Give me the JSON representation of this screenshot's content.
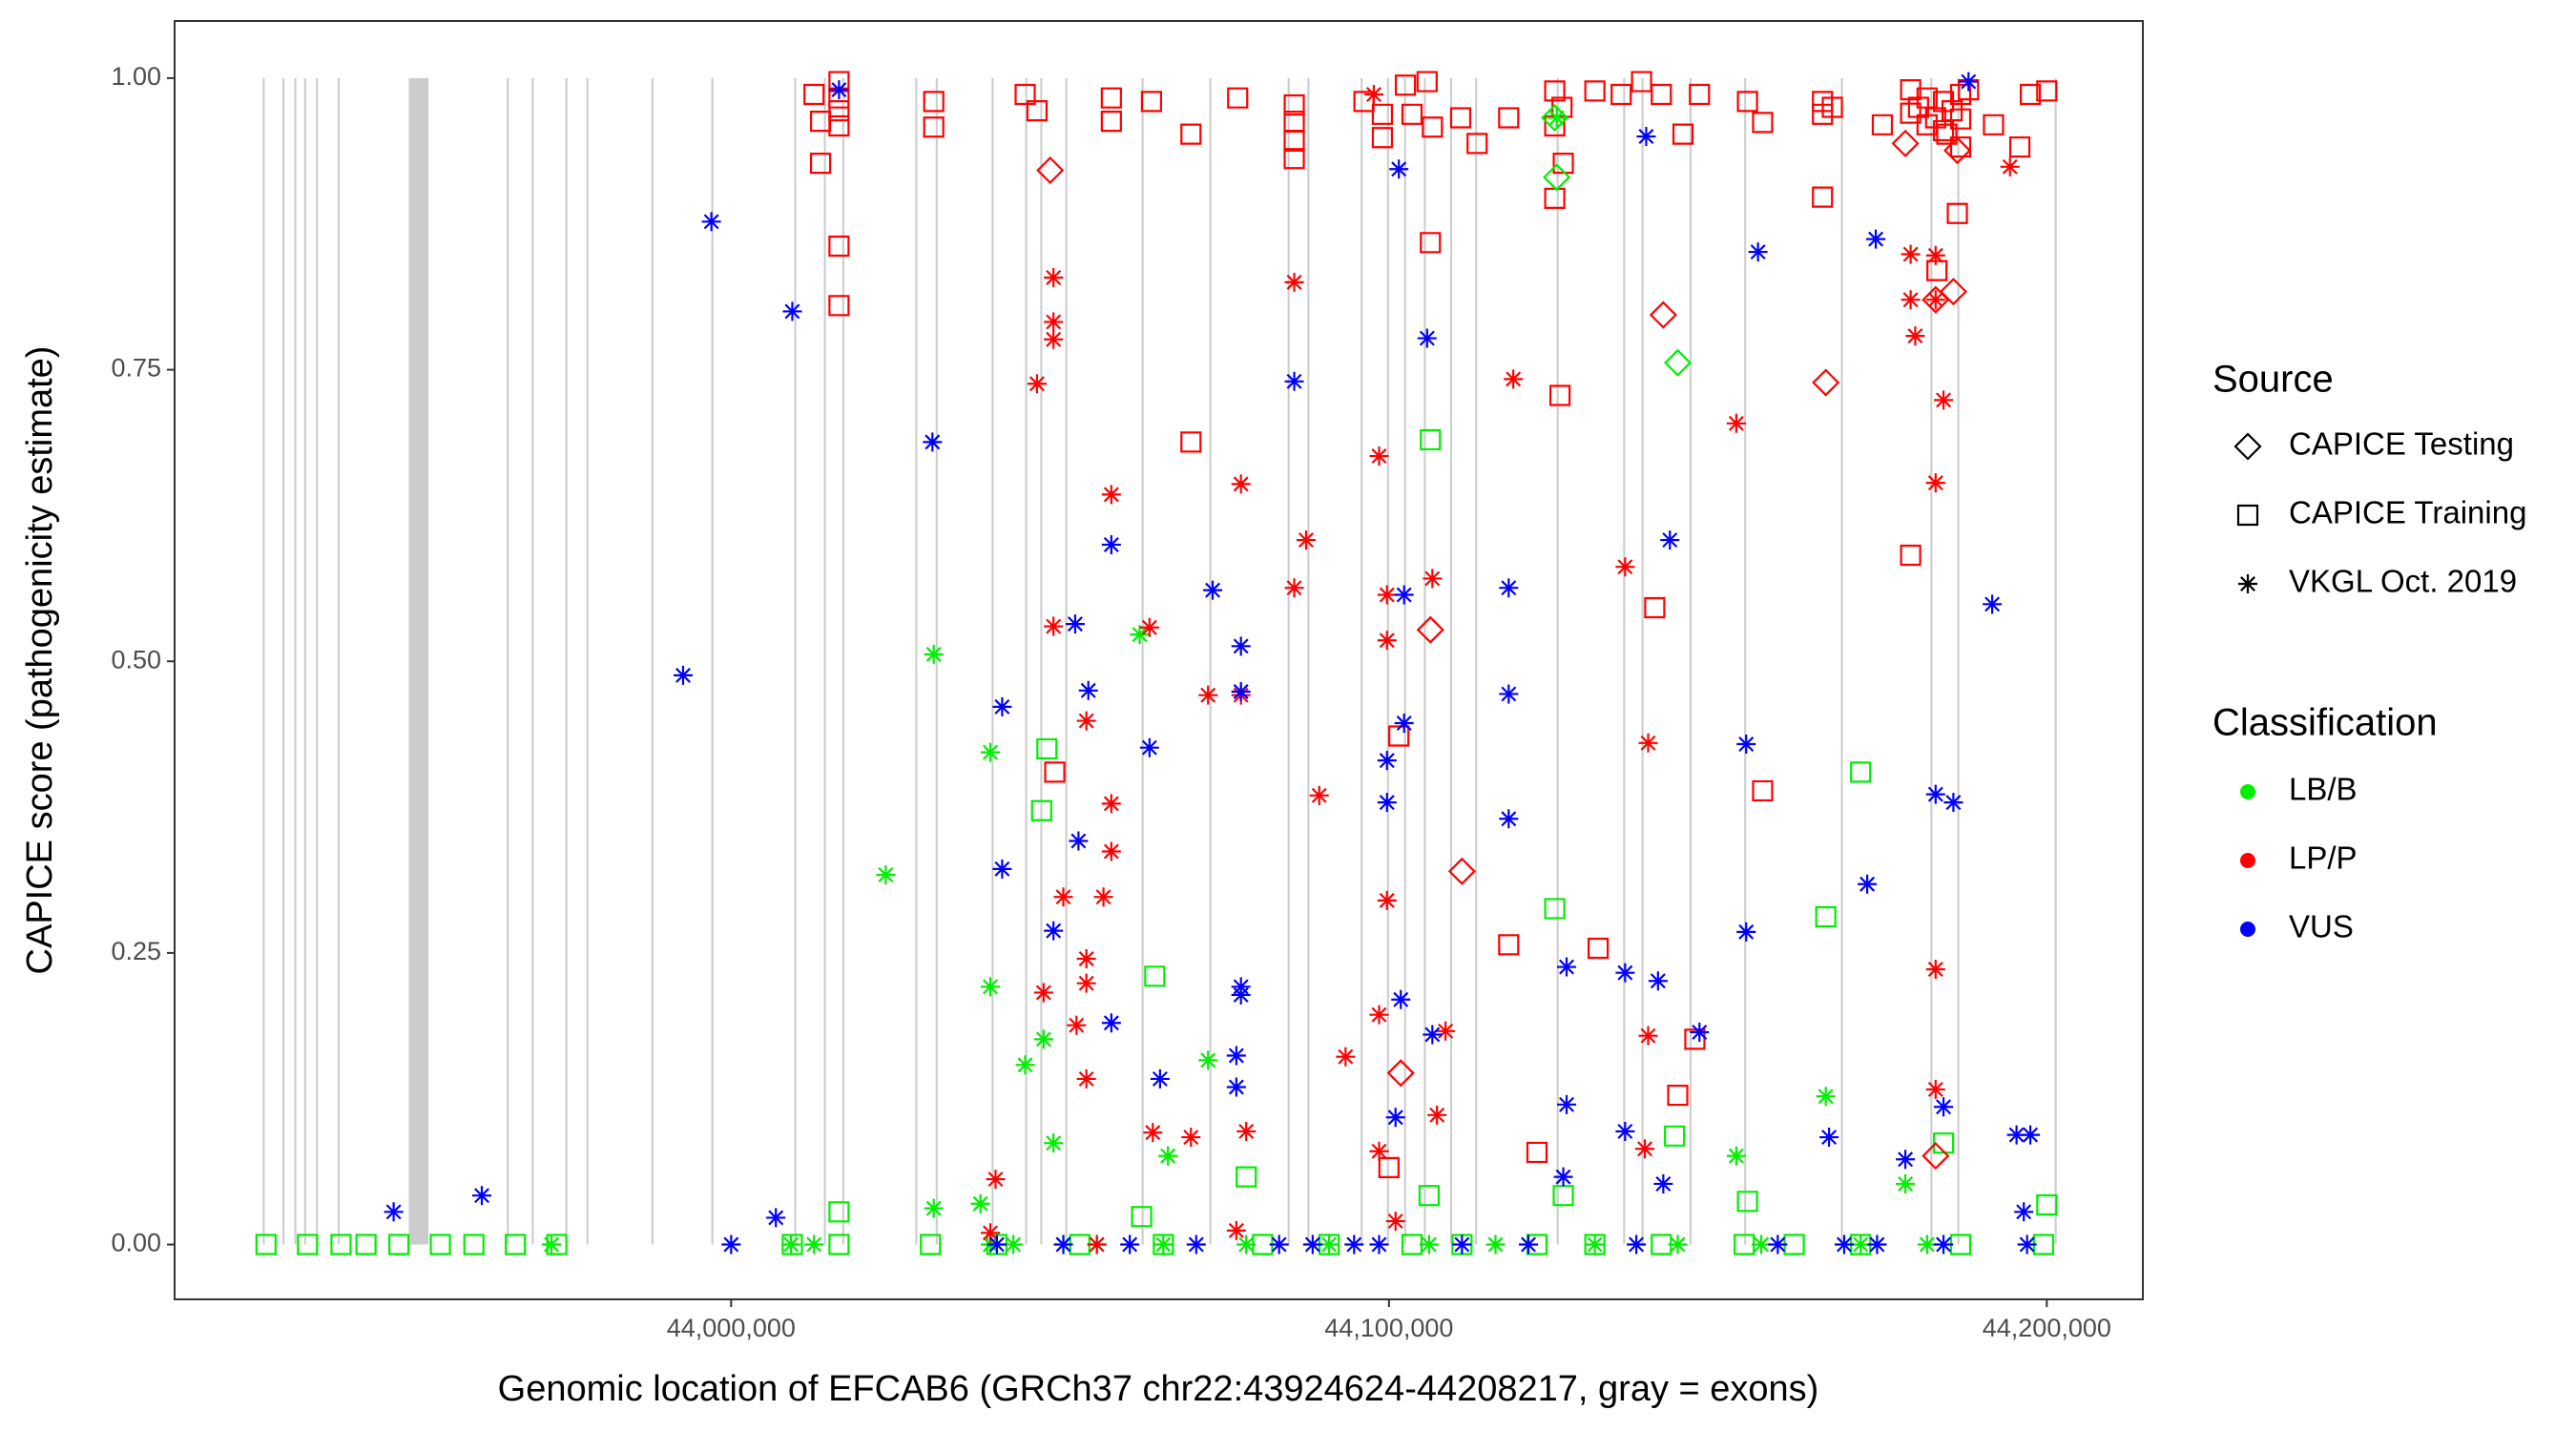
{
  "chart_data": {
    "type": "scatter",
    "x_label": "Genomic location of EFCAB6 (GRCh37 chr22:43924624-44208217, gray = exons)",
    "y_label": "CAPICE score (pathogenicity estimate)",
    "xlim": [
      43915400,
      44214600
    ],
    "ylim": [
      -0.047,
      1.049
    ],
    "xticks": [
      {
        "value": 44000000,
        "label": "44,000,000"
      },
      {
        "value": 44100000,
        "label": "44,100,000"
      },
      {
        "value": 44200000,
        "label": "44,200,000"
      }
    ],
    "yticks": [
      {
        "value": 0,
        "label": "0.00"
      },
      {
        "value": 0.25,
        "label": "0.25"
      },
      {
        "value": 0.5,
        "label": "0.50"
      },
      {
        "value": 0.75,
        "label": "0.75"
      },
      {
        "value": 1,
        "label": "1.00"
      }
    ],
    "grid": false,
    "exon_color": "#cccccc",
    "exons": [
      [
        43928800,
        43929100
      ],
      [
        43931800,
        43932100
      ],
      [
        43933600,
        43933900
      ],
      [
        43935100,
        43935400
      ],
      [
        43936900,
        43937200
      ],
      [
        43940200,
        43940500
      ],
      [
        43951000,
        43954000
      ],
      [
        43965900,
        43966200
      ],
      [
        43969700,
        43970000
      ],
      [
        43974800,
        43975100
      ],
      [
        43978000,
        43978300
      ],
      [
        43987900,
        43988200
      ],
      [
        43997000,
        43997300
      ],
      [
        44009600,
        44009900
      ],
      [
        44014100,
        44014400
      ],
      [
        44016900,
        44017200
      ],
      [
        44028000,
        44028300
      ],
      [
        44031100,
        44031400
      ],
      [
        44039600,
        44039900
      ],
      [
        44044700,
        44045000
      ],
      [
        44047000,
        44047300
      ],
      [
        44050800,
        44051100
      ],
      [
        44062400,
        44062700
      ],
      [
        44072700,
        44073000
      ],
      [
        44084600,
        44084900
      ],
      [
        44087600,
        44087900
      ],
      [
        44095700,
        44096000
      ],
      [
        44099700,
        44100000
      ],
      [
        44102300,
        44102600
      ],
      [
        44105300,
        44105600
      ],
      [
        44109300,
        44109600
      ],
      [
        44113100,
        44113400
      ],
      [
        44125500,
        44125800
      ],
      [
        44135600,
        44135900
      ],
      [
        44138400,
        44138700
      ],
      [
        44145700,
        44146000
      ],
      [
        44154000,
        44154300
      ],
      [
        44168700,
        44169000
      ],
      [
        44182300,
        44182600
      ],
      [
        44186400,
        44186700
      ],
      [
        44201200,
        44201500
      ]
    ],
    "legend": {
      "source": {
        "title": "Source",
        "entries": [
          {
            "name": "CAPICE Testing",
            "shape": "diamond"
          },
          {
            "name": "CAPICE Training",
            "shape": "square"
          },
          {
            "name": "VKGL Oct. 2019",
            "shape": "asterisk"
          }
        ]
      },
      "classification": {
        "title": "Classification",
        "entries": [
          {
            "name": "LB/B",
            "color": "#00ee00"
          },
          {
            "name": "LP/P",
            "color": "#ff0000"
          },
          {
            "name": "VUS",
            "color": "#0000ff"
          }
        ]
      }
    },
    "series": [
      {
        "source": "CAPICE Training",
        "classification": "LB/B",
        "x": [
          43929300,
          43935600,
          43940700,
          43944500,
          43949500,
          43955800,
          43960900,
          43967200,
          43973500,
          44009300,
          44016400,
          44030300,
          44040400,
          44053000,
          44065700,
          44080800,
          44090900,
          44103500,
          44111100,
          44122500,
          44131300,
          44141400,
          44154000,
          44161600,
          44171700,
          44186900,
          44199500,
          44016400,
          44200000,
          44048000,
          44047200,
          44064400,
          44106300,
          44125200,
          44171700,
          44166400,
          44143400,
          44154500,
          44078300,
          44062400,
          44106100,
          44126500,
          44184300
        ],
        "values": [
          0,
          0,
          0,
          0,
          0,
          0,
          0,
          0,
          0,
          0,
          0,
          0,
          0,
          0,
          0,
          0,
          0,
          0,
          0,
          0,
          0,
          0,
          0,
          0,
          0,
          0,
          0,
          0.028,
          0.034,
          0.425,
          0.372,
          0.23,
          0.69,
          0.288,
          0.405,
          0.281,
          0.093,
          0.037,
          0.058,
          0.024,
          0.042,
          0.042,
          0.087
        ]
      },
      {
        "source": "CAPICE Training",
        "classification": "LP/P",
        "x": [
          44012600,
          44013600,
          44013600,
          44016400,
          44016400,
          44016400,
          44016400,
          44030800,
          44030800,
          44044700,
          44046500,
          44057800,
          44057800,
          44063900,
          44069900,
          44077000,
          44085600,
          44085600,
          44085600,
          44085600,
          44096200,
          44099000,
          44099000,
          44102500,
          44103500,
          44106600,
          44105800,
          44110900,
          44113400,
          44118200,
          44125200,
          44126300,
          44125200,
          44126500,
          44131300,
          44135300,
          44138400,
          44141400,
          44144700,
          44147200,
          44154500,
          44156800,
          44165900,
          44165900,
          44167400,
          44175000,
          44179300,
          44181800,
          44184300,
          44186900,
          44184800,
          44186900,
          44191900,
          44197500,
          44200000,
          44195900,
          44125200,
          44165900,
          44186400,
          44016400,
          44016400,
          44106300,
          44069900,
          44126000,
          44140400,
          44179300,
          44101500,
          44156800,
          44049200,
          44118200,
          44131800,
          44146500,
          44143900,
          44122500,
          44100000,
          44183300,
          44180500,
          44183100,
          44185600,
          44181800,
          44188100,
          44184300,
          44179300,
          44186900
        ],
        "values": [
          0.986,
          0.963,
          0.927,
          0.997,
          0.983,
          0.972,
          0.959,
          0.98,
          0.958,
          0.986,
          0.972,
          0.983,
          0.963,
          0.98,
          0.952,
          0.983,
          0.977,
          0.963,
          0.946,
          0.931,
          0.98,
          0.969,
          0.949,
          0.994,
          0.969,
          0.958,
          0.997,
          0.966,
          0.944,
          0.966,
          0.989,
          0.975,
          0.959,
          0.927,
          0.989,
          0.986,
          0.997,
          0.986,
          0.952,
          0.986,
          0.98,
          0.962,
          0.969,
          0.98,
          0.975,
          0.96,
          0.99,
          0.983,
          0.98,
          0.986,
          0.952,
          0.941,
          0.96,
          0.986,
          0.989,
          0.941,
          0.897,
          0.898,
          0.884,
          0.856,
          0.805,
          0.859,
          0.688,
          0.728,
          0.546,
          0.591,
          0.436,
          0.389,
          0.405,
          0.257,
          0.254,
          0.176,
          0.128,
          0.079,
          0.066,
          0.835,
          0.975,
          0.966,
          0.972,
          0.96,
          0.99,
          0.955,
          0.97,
          0.965
        ]
      },
      {
        "source": "CAPICE Testing",
        "classification": "LP/P",
        "x": [
          44048500,
          44141700,
          44166400,
          44183100,
          44185800,
          44111100,
          44106300,
          44101800,
          44178500,
          44186400,
          44183100
        ],
        "values": [
          0.921,
          0.797,
          0.739,
          0.81,
          0.817,
          0.32,
          0.527,
          0.147,
          0.944,
          0.938,
          0.076
        ]
      },
      {
        "source": "CAPICE Testing",
        "classification": "LB/B",
        "x": [
          44125500,
          44143900,
          44125200
        ],
        "values": [
          0.915,
          0.756,
          0.966
        ]
      },
      {
        "source": "VKGL Oct. 2019",
        "classification": "LB/B",
        "x": [
          44023500,
          44030800,
          44039400,
          44039400,
          44044700,
          44047500,
          44049000,
          44062100,
          44066400,
          44072500,
          44125500,
          44166400,
          44152800,
          44178500,
          44030800,
          44037900,
          43972700,
          44009100,
          44012600,
          44039400,
          44042900,
          44050500,
          44055600,
          44065700,
          44078300,
          44090900,
          44106100,
          44116200,
          44131300,
          44143900,
          44156600,
          44171700,
          44181800
        ],
        "values": [
          0.317,
          0.506,
          0.422,
          0.221,
          0.154,
          0.176,
          0.087,
          0.523,
          0.076,
          0.158,
          0.966,
          0.127,
          0.076,
          0.052,
          0.031,
          0.035,
          0,
          0,
          0,
          0,
          0,
          0,
          0,
          0,
          0,
          0,
          0,
          0,
          0,
          0,
          0,
          0,
          0
        ]
      },
      {
        "source": "VKGL Oct. 2019",
        "classification": "LP/P",
        "x": [
          44049000,
          44049000,
          44049000,
          44046500,
          44057800,
          44049000,
          44063600,
          44054000,
          44057800,
          44057800,
          44050500,
          44056600,
          44054000,
          44054000,
          44047500,
          44052500,
          44054000,
          44085600,
          44077500,
          44087400,
          44085600,
          44089400,
          44072500,
          44077500,
          44098500,
          44106600,
          44099700,
          44099700,
          44099700,
          44093400,
          44098500,
          44118900,
          44135900,
          44139400,
          44152800,
          44139400,
          44179300,
          44183100,
          44179300,
          44183100,
          44180000,
          44184300,
          44183100,
          44183100,
          44183100,
          44194400,
          44108600,
          44107300,
          44040200,
          44069900,
          44078300,
          44064100,
          44098500,
          44138900,
          44097700,
          44039400,
          44055600,
          44076800,
          44101000
        ],
        "values": [
          0.829,
          0.791,
          0.776,
          0.738,
          0.643,
          0.53,
          0.529,
          0.449,
          0.378,
          0.337,
          0.298,
          0.298,
          0.245,
          0.224,
          0.216,
          0.188,
          0.142,
          0.825,
          0.652,
          0.604,
          0.563,
          0.385,
          0.471,
          0.471,
          0.676,
          0.571,
          0.557,
          0.518,
          0.295,
          0.161,
          0.197,
          0.742,
          0.581,
          0.43,
          0.704,
          0.179,
          0.849,
          0.848,
          0.81,
          0.81,
          0.779,
          0.724,
          0.653,
          0.236,
          0.133,
          0.924,
          0.183,
          0.111,
          0.056,
          0.092,
          0.097,
          0.096,
          0.08,
          0.082,
          0.986,
          0.01,
          0,
          0.012,
          0.02
        ]
      },
      {
        "source": "VKGL Oct. 2019",
        "classification": "VUS",
        "x": [
          43948700,
          43962100,
          43997000,
          43992700,
          44009300,
          44016400,
          44030600,
          44041200,
          44041200,
          44049000,
          44052300,
          44054300,
          44052800,
          44057800,
          44057800,
          44063600,
          44065200,
          44073200,
          44077500,
          44077500,
          44077500,
          44077500,
          44076800,
          44076800,
          44085600,
          44101500,
          44102300,
          44102300,
          44099700,
          44099700,
          44105800,
          44101800,
          44106600,
          44101000,
          44118200,
          44118200,
          44118200,
          44127000,
          44127000,
          44139100,
          44142700,
          44156100,
          44154300,
          44154300,
          44140900,
          44135900,
          44147200,
          44135900,
          44141700,
          44166900,
          44174000,
          44172700,
          44183100,
          44185800,
          44191700,
          44184300,
          44195400,
          44197500,
          44188100,
          44196500,
          44178500,
          44126500,
          44000000,
          44006800,
          44040400,
          44050500,
          44060600,
          44070700,
          44083300,
          44088400,
          44094700,
          44098500,
          44111100,
          44121200,
          44137600,
          44159100,
          44169200,
          44174200,
          44184300,
          44197000
        ],
        "values": [
          0.028,
          0.042,
          0.877,
          0.488,
          0.8,
          0.99,
          0.688,
          0.461,
          0.322,
          0.269,
          0.532,
          0.475,
          0.346,
          0.6,
          0.19,
          0.426,
          0.142,
          0.561,
          0.513,
          0.474,
          0.221,
          0.214,
          0.162,
          0.135,
          0.74,
          0.922,
          0.557,
          0.447,
          0.415,
          0.379,
          0.777,
          0.21,
          0.18,
          0.109,
          0.563,
          0.472,
          0.365,
          0.238,
          0.12,
          0.95,
          0.604,
          0.851,
          0.429,
          0.268,
          0.226,
          0.233,
          0.182,
          0.097,
          0.052,
          0.092,
          0.862,
          0.309,
          0.386,
          0.379,
          0.549,
          0.118,
          0.094,
          0.094,
          0.997,
          0.028,
          0.073,
          0.058,
          0,
          0.023,
          0,
          0,
          0,
          0,
          0,
          0,
          0,
          0,
          0,
          0,
          0,
          0,
          0,
          0,
          0,
          0
        ]
      }
    ]
  }
}
